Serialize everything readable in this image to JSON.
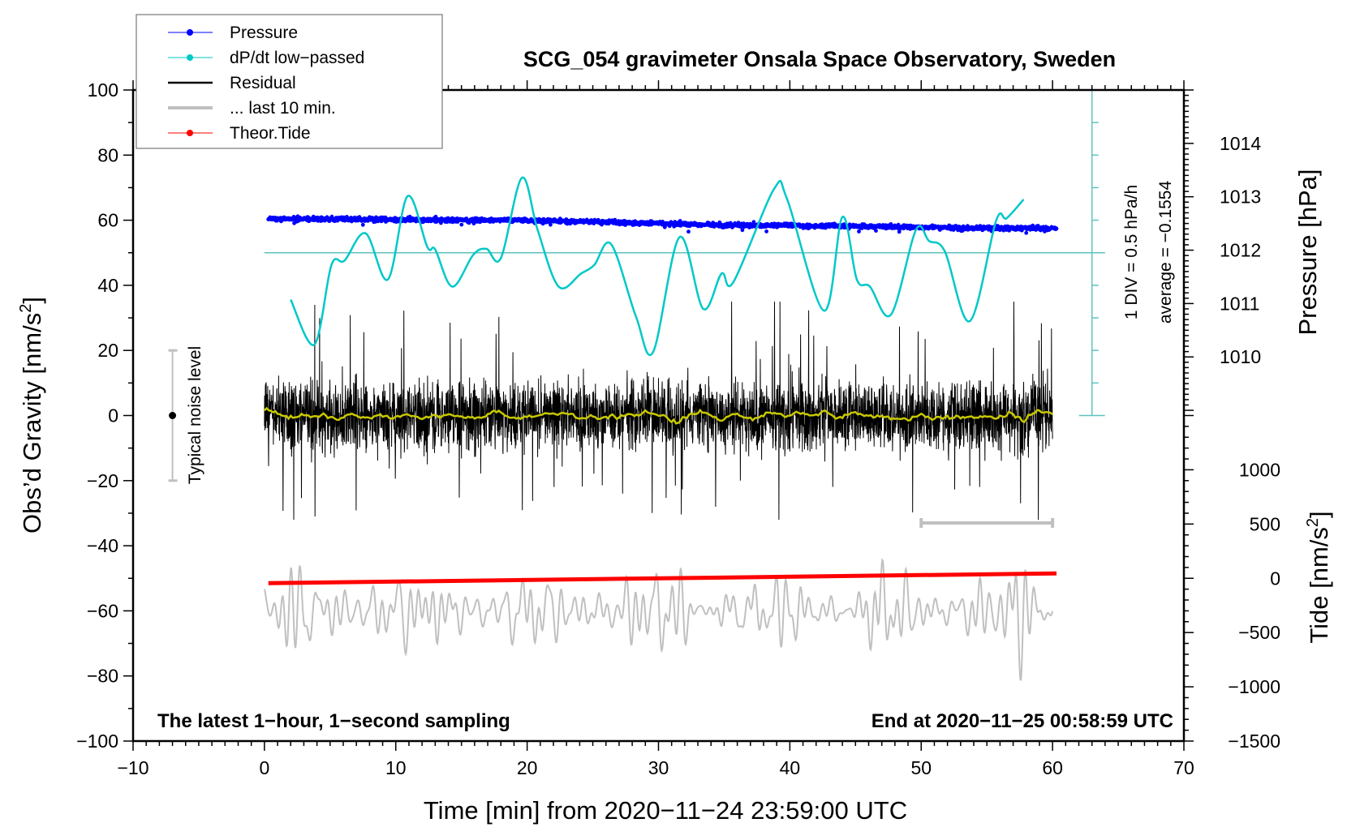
{
  "chart_data": {
    "type": "line",
    "title": "SCG_054 gravimeter Onsala Space Observatory, Sweden",
    "xlabel": "Time [min] from 2020−11−24 23:59:00 UTC",
    "ylabel": "Obs’d Gravity [nm/s²]",
    "ylabel_parts": {
      "main": "Obs’d Gravity [nm/s",
      "sup": "2",
      "end": "]"
    },
    "pressure_label": "Pressure [hPa]",
    "tide_label_parts": {
      "main": "Tide [nm/s",
      "sup": "2",
      "end": "]"
    },
    "xlim": [
      -10,
      70
    ],
    "ylim": [
      -100,
      100
    ],
    "xticks": [
      -10,
      0,
      10,
      20,
      30,
      40,
      50,
      60,
      70
    ],
    "xtick_labels": [
      "−10",
      "0",
      "10",
      "20",
      "30",
      "40",
      "50",
      "60",
      "70"
    ],
    "yticks": [
      100,
      80,
      60,
      40,
      20,
      0,
      -20,
      -40,
      -60,
      -80,
      -100
    ],
    "ytick_labels": [
      "100",
      "80",
      "60",
      "40",
      "20",
      "0",
      "−20",
      "−40",
      "−60",
      "−80",
      "−100"
    ],
    "pressure_axis": {
      "ticks": [
        1014,
        1013,
        1012,
        1011,
        1010
      ],
      "tick_labels": [
        "1014",
        "1013",
        "1012",
        "1011",
        "1010"
      ],
      "range": [
        1009,
        1015
      ]
    },
    "tide_axis": {
      "ticks": [
        1000,
        500,
        0,
        -500,
        -1000,
        -1500
      ],
      "tick_labels": [
        "1000",
        "500",
        "0",
        "−500",
        "−1000",
        "−1500"
      ],
      "range": [
        -1500,
        1500
      ]
    },
    "legend": {
      "placement": "top-left",
      "entries": [
        {
          "label": "Pressure",
          "color": "#0000ff",
          "marker": "dot"
        },
        {
          "label": "dP/dt low−passed",
          "color": "#00c8c8",
          "marker": "dot"
        },
        {
          "label": "Residual",
          "color": "#000000",
          "marker": "line"
        },
        {
          "label": "... last 10 min.",
          "color": "#c0c0c0",
          "marker": "line"
        },
        {
          "label": "Theor.Tide",
          "color": "#ff0000",
          "marker": "dot"
        }
      ]
    },
    "series": {
      "pressure": {
        "unit": "hPa",
        "t": [
          0.3,
          10,
          20,
          30,
          35,
          45,
          55,
          60.3
        ],
        "values": [
          1012.59,
          1012.57,
          1012.56,
          1012.5,
          1012.47,
          1012.45,
          1012.41,
          1012.41
        ],
        "scatter": 0.04
      },
      "dpdt": {
        "unit": "hPa/h",
        "t": [
          2.0,
          3.8,
          5.1,
          6.1,
          7.7,
          9.4,
          10.9,
          12.4,
          13.0,
          14.3,
          15.9,
          16.9,
          18.0,
          19.6,
          20.8,
          22.4,
          24.1,
          25.1,
          26.4,
          28.3,
          29.6,
          31.6,
          33.4,
          34.8,
          35.7,
          38.8,
          39.8,
          42.6,
          44.0,
          45.1,
          46.1,
          47.7,
          49.6,
          50.6,
          51.8,
          53.7,
          55.7,
          56.5,
          57.8
        ],
        "values": [
          -0.72,
          -1.41,
          -0.19,
          -0.12,
          0.3,
          -0.41,
          0.87,
          0.09,
          0.05,
          -0.52,
          -0.03,
          0.06,
          -0.08,
          1.15,
          0.35,
          -0.52,
          -0.32,
          -0.19,
          0.13,
          -0.99,
          -1.52,
          0.24,
          -0.86,
          -0.32,
          -0.45,
          0.98,
          0.82,
          -0.89,
          0.55,
          -0.41,
          -0.52,
          -0.95,
          0.35,
          0.18,
          0.02,
          -1.05,
          0.49,
          0.53,
          0.82
        ]
      },
      "residual": {
        "unit": "nm/s²",
        "t_range": [
          0,
          60
        ],
        "sampling_s": 1,
        "std": 6,
        "min": -32,
        "max": 35
      },
      "residual_last10": {
        "unit": "nm/s²",
        "source_t_range": [
          50,
          60
        ],
        "offset": -60
      },
      "tide": {
        "unit": "nm/s²",
        "t": [
          0.3,
          60.3
        ],
        "values": [
          -45,
          45
        ]
      }
    },
    "dpdt_scale": {
      "div_label": "1 DIV = 0.5 hPa/h",
      "average_label": "average = −0.1554",
      "div_value": 0.5,
      "average": -0.1554
    },
    "noise_level": {
      "label": "Typical noise level",
      "range": [
        -20,
        20
      ]
    },
    "last10_bar": {
      "t_range": [
        50,
        60
      ]
    },
    "footer_left": "The latest 1−hour, 1−second sampling",
    "footer_right": "End at 2020−11−25 00:58:59 UTC",
    "colors": {
      "pressure": "#0000ff",
      "dpdt": "#00c8c8",
      "dpdt_axis": "#5fc2bd",
      "residual": "#000000",
      "smooth": "#c8c800",
      "last10": "#c0c0c0",
      "tide": "#ff0000"
    }
  }
}
